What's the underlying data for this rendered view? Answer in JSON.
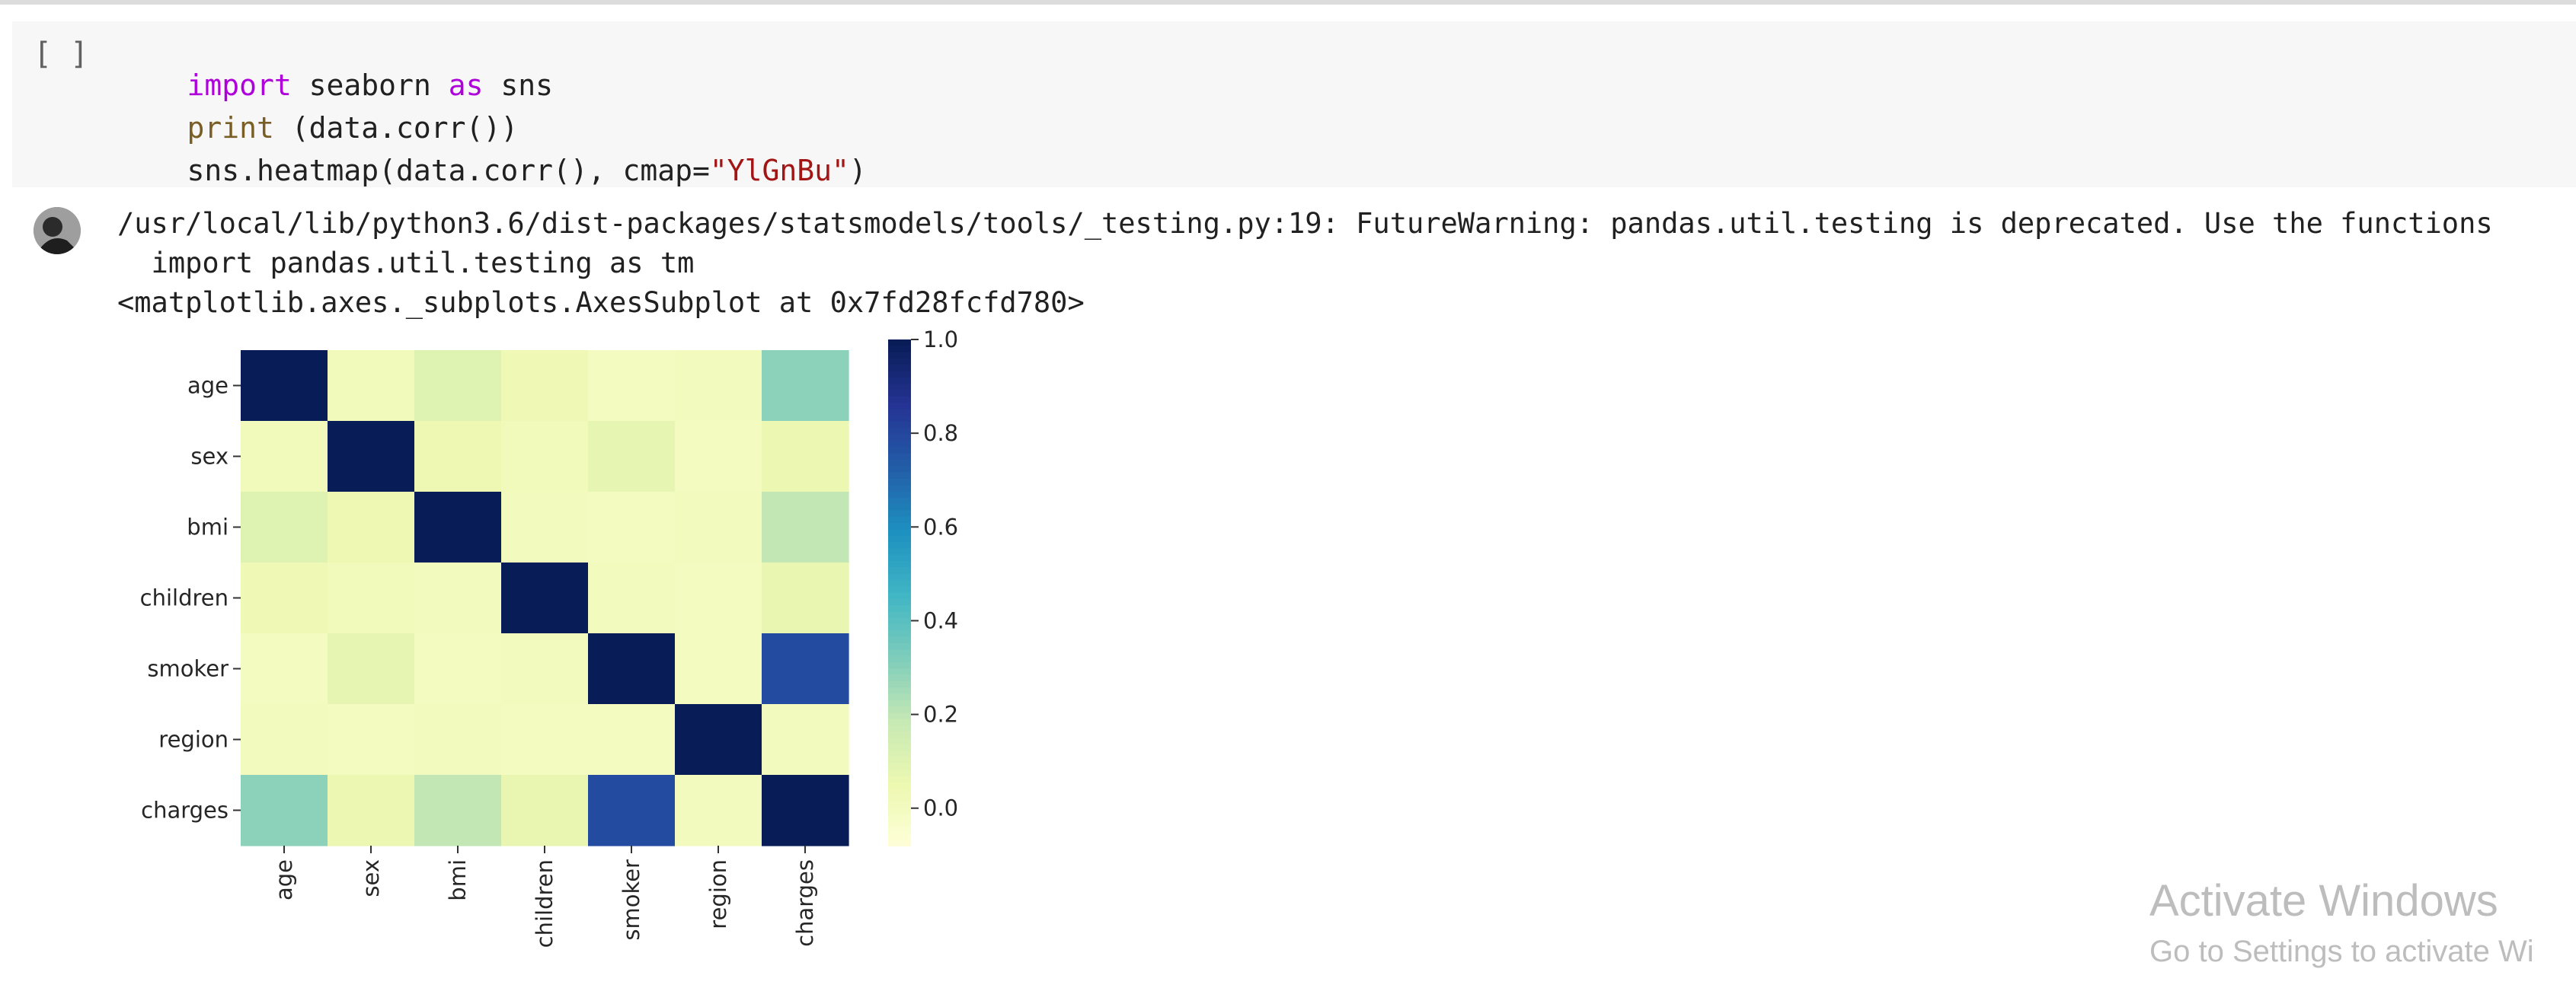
{
  "code_cell": {
    "run_label": "[ ]",
    "line1": {
      "kw1": "import",
      "mid": " seaborn ",
      "kw2": "as",
      "end": " sns"
    },
    "line2": {
      "fn": "print",
      "rest": " (data.corr())"
    },
    "line3": {
      "pre": "sns.heatmap(data.corr(), cmap=",
      "str": "\"YlGnBu\"",
      "post": ")"
    }
  },
  "output": {
    "line1": "/usr/local/lib/python3.6/dist-packages/statsmodels/tools/_testing.py:19: FutureWarning: pandas.util.testing is deprecated. Use the functions",
    "line2": "  import pandas.util.testing as tm",
    "line3": "<matplotlib.axes._subplots.AxesSubplot at 0x7fd28fcfd780>"
  },
  "chart_data": {
    "type": "heatmap",
    "cmap": "YlGnBu",
    "row_labels": [
      "age",
      "sex",
      "bmi",
      "children",
      "smoker",
      "region",
      "charges"
    ],
    "col_labels": [
      "age",
      "sex",
      "bmi",
      "children",
      "smoker",
      "region",
      "charges"
    ],
    "values": [
      [
        1.0,
        0.02,
        0.11,
        0.04,
        0.0,
        0.01,
        0.3
      ],
      [
        0.02,
        1.0,
        0.05,
        0.02,
        0.08,
        0.0,
        0.06
      ],
      [
        0.11,
        0.05,
        1.0,
        0.01,
        0.0,
        0.01,
        0.2
      ],
      [
        0.04,
        0.02,
        0.01,
        1.0,
        0.01,
        0.0,
        0.07
      ],
      [
        0.0,
        0.08,
        0.0,
        0.01,
        1.0,
        0.0,
        0.79
      ],
      [
        0.01,
        0.0,
        0.01,
        0.0,
        0.0,
        1.0,
        0.01
      ],
      [
        0.3,
        0.06,
        0.2,
        0.07,
        0.79,
        0.01,
        1.0
      ]
    ],
    "colorbar": {
      "min": -0.08,
      "max": 1.0,
      "ticks": [
        1.0,
        0.8,
        0.6,
        0.4,
        0.2,
        0.0
      ],
      "tick_labels": [
        "1.0",
        "0.8",
        "0.6",
        "0.4",
        "0.2",
        "0.0"
      ]
    },
    "colors": {
      "low": "#ffffd9",
      "high": "#081d58"
    }
  },
  "watermark": {
    "title": "Activate Windows",
    "subtitle": "Go to Settings to activate Wi"
  }
}
